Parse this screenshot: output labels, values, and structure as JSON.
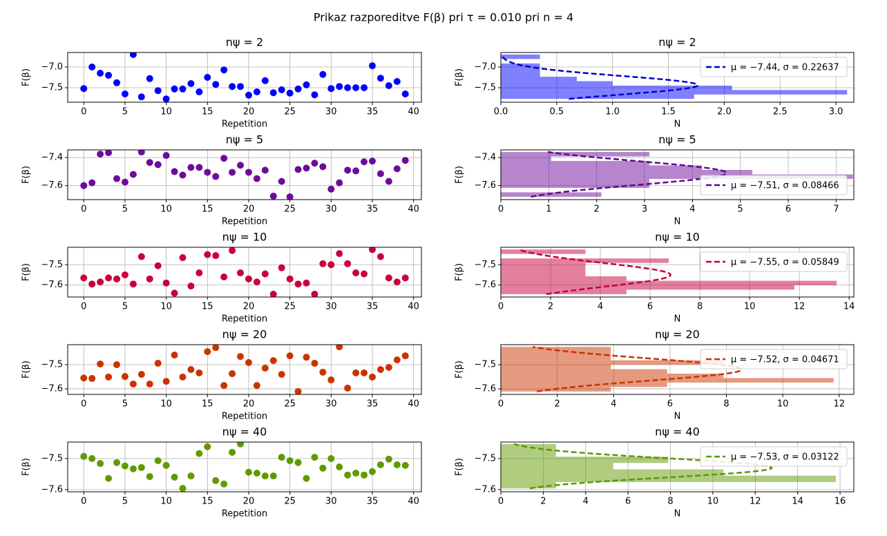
{
  "title": "Prikaz razporeditve F(β) pri τ = 0.010 pri n = 4",
  "chart_data": [
    {
      "type": "scatter",
      "title": "nψ = 2",
      "xlabel": "Repetition",
      "ylabel": "F(β)",
      "color": "#0000ff",
      "grid": true,
      "x": [
        0,
        1,
        2,
        3,
        4,
        5,
        6,
        7,
        8,
        9,
        10,
        11,
        12,
        13,
        14,
        15,
        16,
        17,
        18,
        19,
        20,
        21,
        22,
        23,
        24,
        25,
        26,
        27,
        28,
        29,
        30,
        31,
        32,
        33,
        34,
        35,
        36,
        37,
        38,
        39
      ],
      "values": [
        -7.52,
        -7.0,
        -7.15,
        -7.2,
        -7.38,
        -7.65,
        -6.7,
        -7.72,
        -7.28,
        -7.57,
        -7.77,
        -7.53,
        -7.53,
        -7.4,
        -7.6,
        -7.25,
        -7.42,
        -7.07,
        -7.47,
        -7.47,
        -7.68,
        -7.6,
        -7.33,
        -7.62,
        -7.55,
        -7.63,
        -7.53,
        -7.43,
        -7.67,
        -7.18,
        -7.52,
        -7.47,
        -7.5,
        -7.5,
        -7.5,
        -6.97,
        -7.27,
        -7.45,
        -7.35,
        -7.65
      ],
      "xlim": [
        -1.95,
        40.95
      ],
      "xticks": [
        0,
        5,
        10,
        15,
        20,
        25,
        30,
        35,
        40
      ],
      "ylim": [
        -7.85,
        -6.65
      ],
      "yticks": [
        {
          "value": -7.5,
          "label": "−7.5"
        },
        {
          "value": -7.0,
          "label": "−7.0"
        }
      ]
    },
    {
      "type": "histogram",
      "title": "nψ = 2",
      "xlabel": "N",
      "ylabel": "F(β)",
      "color": "#0000ff",
      "grid": true,
      "legend": "upper right",
      "bins": [
        -7.77,
        -7.663,
        -7.556,
        -7.449,
        -7.342,
        -7.235,
        -7.128,
        -7.021,
        -6.914,
        -6.807,
        -6.7
      ],
      "counts": [
        1.73,
        3.1,
        2.07,
        1.0,
        0.68,
        0.35,
        0.35,
        0.35,
        0,
        0.35
      ],
      "fit": {
        "name": "μ = −7.44, σ = 0.22637",
        "mu": -7.44,
        "sigma": 0.22637,
        "color": "#0000cc"
      },
      "xlim": [
        0,
        3.16
      ],
      "xticks": [
        {
          "value": 0,
          "label": "0.0"
        },
        0.5,
        {
          "value": 1,
          "label": "1.0"
        },
        1.5,
        {
          "value": 2,
          "label": "2.0"
        },
        2.5,
        {
          "value": 3,
          "label": "3.0"
        }
      ],
      "ylim": [
        -7.85,
        -6.65
      ],
      "yticks": [
        {
          "value": -7.5,
          "label": "−7.5"
        },
        {
          "value": -7.0,
          "label": "−7.0"
        }
      ]
    },
    {
      "type": "scatter",
      "title": "nψ = 5",
      "xlabel": "Repetition",
      "ylabel": "F(β)",
      "color": "#6d0c9c",
      "grid": true,
      "x": [
        0,
        1,
        2,
        3,
        4,
        5,
        6,
        7,
        8,
        9,
        10,
        11,
        12,
        13,
        14,
        15,
        16,
        17,
        18,
        19,
        20,
        21,
        22,
        23,
        24,
        25,
        26,
        27,
        28,
        29,
        30,
        31,
        32,
        33,
        34,
        35,
        36,
        37,
        38,
        39
      ],
      "values": [
        -7.6,
        -7.58,
        -7.375,
        -7.365,
        -7.55,
        -7.575,
        -7.52,
        -7.36,
        -7.435,
        -7.45,
        -7.385,
        -7.5,
        -7.525,
        -7.47,
        -7.47,
        -7.505,
        -7.535,
        -7.405,
        -7.505,
        -7.455,
        -7.505,
        -7.55,
        -7.49,
        -7.675,
        -7.57,
        -7.68,
        -7.485,
        -7.475,
        -7.44,
        -7.465,
        -7.625,
        -7.58,
        -7.49,
        -7.495,
        -7.43,
        -7.425,
        -7.515,
        -7.57,
        -7.48,
        -7.42
      ],
      "xlim": [
        -1.95,
        40.95
      ],
      "xticks": [
        0,
        5,
        10,
        15,
        20,
        25,
        30,
        35,
        40
      ],
      "ylim": [
        -7.7,
        -7.345
      ],
      "yticks": [
        {
          "value": -7.6,
          "label": "−7.6"
        },
        {
          "value": -7.4,
          "label": "−7.4"
        }
      ]
    },
    {
      "type": "histogram",
      "title": "nψ = 5",
      "xlabel": "N",
      "ylabel": "F(β)",
      "color": "#6d0c9c",
      "grid": true,
      "legend": "lower right",
      "bins": [
        -7.68,
        -7.648,
        -7.616,
        -7.584,
        -7.552,
        -7.52,
        -7.488,
        -7.456,
        -7.424,
        -7.392,
        -7.36
      ],
      "counts": [
        2.1,
        0,
        3.1,
        3.1,
        7.35,
        5.25,
        4.2,
        3.1,
        1.05,
        3.1
      ],
      "fit": {
        "name": "μ = −7.51, σ = 0.08466",
        "mu": -7.51,
        "sigma": 0.08466,
        "color": "#5a0a8a"
      },
      "xlim": [
        0,
        7.37
      ],
      "xticks": [
        0,
        1,
        2,
        3,
        4,
        5,
        6,
        7
      ],
      "ylim": [
        -7.7,
        -7.345
      ],
      "yticks": [
        {
          "value": -7.6,
          "label": "−7.6"
        },
        {
          "value": -7.4,
          "label": "−7.4"
        }
      ]
    },
    {
      "type": "scatter",
      "title": "nψ = 10",
      "xlabel": "Repetition",
      "ylabel": "F(β)",
      "color": "#c8003c",
      "grid": true,
      "x": [
        0,
        1,
        2,
        3,
        4,
        5,
        6,
        7,
        8,
        9,
        10,
        11,
        12,
        13,
        14,
        15,
        16,
        17,
        18,
        19,
        20,
        21,
        22,
        23,
        24,
        25,
        26,
        27,
        28,
        29,
        30,
        31,
        32,
        33,
        34,
        35,
        36,
        37,
        38,
        39
      ],
      "values": [
        -7.565,
        -7.595,
        -7.585,
        -7.565,
        -7.57,
        -7.55,
        -7.595,
        -7.46,
        -7.57,
        -7.505,
        -7.59,
        -7.64,
        -7.465,
        -7.605,
        -7.54,
        -7.45,
        -7.455,
        -7.56,
        -7.43,
        -7.54,
        -7.57,
        -7.585,
        -7.545,
        -7.645,
        -7.515,
        -7.57,
        -7.595,
        -7.59,
        -7.645,
        -7.495,
        -7.5,
        -7.445,
        -7.495,
        -7.54,
        -7.545,
        -7.425,
        -7.46,
        -7.565,
        -7.585,
        -7.565
      ],
      "xlim": [
        -1.95,
        40.95
      ],
      "xticks": [
        0,
        5,
        10,
        15,
        20,
        25,
        30,
        35,
        40
      ],
      "ylim": [
        -7.659,
        -7.414
      ],
      "yticks": [
        {
          "value": -7.6,
          "label": "−7.6"
        },
        {
          "value": -7.5,
          "label": "−7.5"
        }
      ]
    },
    {
      "type": "histogram",
      "title": "nψ = 10",
      "xlabel": "N",
      "ylabel": "F(β)",
      "color": "#c8003c",
      "grid": true,
      "legend": "upper right",
      "bins": [
        -7.645,
        -7.623,
        -7.601,
        -7.579,
        -7.557,
        -7.535,
        -7.513,
        -7.491,
        -7.469,
        -7.447,
        -7.425
      ],
      "counts": [
        5.05,
        11.8,
        13.5,
        5.05,
        3.4,
        3.4,
        3.4,
        6.75,
        0,
        3.4
      ],
      "fit": {
        "name": "μ = −7.55, σ = 0.05849",
        "mu": -7.55,
        "sigma": 0.05849,
        "color": "#c0003a"
      },
      "xlim": [
        0,
        14.19
      ],
      "xticks": [
        0,
        2,
        4,
        6,
        8,
        10,
        12,
        14
      ],
      "ylim": [
        -7.659,
        -7.414
      ],
      "yticks": [
        {
          "value": -7.6,
          "label": "−7.6"
        },
        {
          "value": -7.5,
          "label": "−7.5"
        }
      ]
    },
    {
      "type": "scatter",
      "title": "nψ = 20",
      "xlabel": "Repetition",
      "ylabel": "F(β)",
      "color": "#cc3300",
      "grid": true,
      "x": [
        0,
        1,
        2,
        3,
        4,
        5,
        6,
        7,
        8,
        9,
        10,
        11,
        12,
        13,
        14,
        15,
        16,
        17,
        18,
        19,
        20,
        21,
        22,
        23,
        24,
        25,
        26,
        27,
        28,
        29,
        30,
        31,
        32,
        33,
        34,
        35,
        36,
        37,
        38,
        39
      ],
      "values": [
        -7.555,
        -7.557,
        -7.497,
        -7.551,
        -7.5,
        -7.549,
        -7.58,
        -7.54,
        -7.58,
        -7.494,
        -7.569,
        -7.46,
        -7.551,
        -7.52,
        -7.534,
        -7.446,
        -7.429,
        -7.586,
        -7.537,
        -7.466,
        -7.491,
        -7.586,
        -7.514,
        -7.483,
        -7.54,
        -7.463,
        -7.611,
        -7.469,
        -7.494,
        -7.531,
        -7.563,
        -7.426,
        -7.597,
        -7.534,
        -7.534,
        -7.551,
        -7.52,
        -7.511,
        -7.48,
        -7.463
      ],
      "xlim": [
        -1.95,
        40.95
      ],
      "xticks": [
        0,
        5,
        10,
        15,
        20,
        25,
        30,
        35,
        40
      ],
      "ylim": [
        -7.623,
        -7.417
      ],
      "yticks": [
        {
          "value": -7.6,
          "label": "−7.6"
        },
        {
          "value": -7.5,
          "label": "−7.5"
        }
      ]
    },
    {
      "type": "histogram",
      "title": "nψ = 20",
      "xlabel": "N",
      "ylabel": "F(β)",
      "color": "#cc3300",
      "grid": true,
      "legend": "upper right",
      "bins": [
        -7.611,
        -7.5925,
        -7.574,
        -7.5555,
        -7.537,
        -7.5185,
        -7.5,
        -7.4815,
        -7.463,
        -7.4445,
        -7.426
      ],
      "counts": [
        3.9,
        5.9,
        11.8,
        7.9,
        5.9,
        3.9,
        7.9,
        3.9,
        3.9,
        3.9
      ],
      "fit": {
        "name": "μ = −7.52, σ = 0.04671",
        "mu": -7.52,
        "sigma": 0.04671,
        "color": "#c83200"
      },
      "xlim": [
        0,
        12.52
      ],
      "xticks": [
        0,
        2,
        4,
        6,
        8,
        10,
        12
      ],
      "ylim": [
        -7.623,
        -7.417
      ],
      "yticks": [
        {
          "value": -7.6,
          "label": "−7.6"
        },
        {
          "value": -7.5,
          "label": "−7.5"
        }
      ]
    },
    {
      "type": "scatter",
      "title": "nψ = 40",
      "xlabel": "Repetition",
      "ylabel": "F(β)",
      "color": "#5f9a00",
      "grid": true,
      "x": [
        0,
        1,
        2,
        3,
        4,
        5,
        6,
        7,
        8,
        9,
        10,
        11,
        12,
        13,
        14,
        15,
        16,
        17,
        18,
        19,
        20,
        21,
        22,
        23,
        24,
        25,
        26,
        27,
        28,
        29,
        30,
        31,
        32,
        33,
        34,
        35,
        36,
        37,
        38,
        39
      ],
      "values": [
        -7.493,
        -7.5,
        -7.516,
        -7.564,
        -7.513,
        -7.524,
        -7.533,
        -7.529,
        -7.558,
        -7.507,
        -7.522,
        -7.56,
        -7.596,
        -7.556,
        -7.484,
        -7.462,
        -7.571,
        -7.582,
        -7.48,
        -7.453,
        -7.544,
        -7.547,
        -7.556,
        -7.556,
        -7.496,
        -7.507,
        -7.513,
        -7.564,
        -7.496,
        -7.531,
        -7.5,
        -7.527,
        -7.553,
        -7.547,
        -7.553,
        -7.542,
        -7.52,
        -7.502,
        -7.52,
        -7.522
      ],
      "xlim": [
        -1.95,
        40.95
      ],
      "xticks": [
        0,
        5,
        10,
        15,
        20,
        25,
        30,
        35,
        40
      ],
      "ylim": [
        -7.607,
        -7.447
      ],
      "yticks": [
        {
          "value": -7.6,
          "label": "−7.6"
        },
        {
          "value": -7.5,
          "label": "−7.5"
        }
      ]
    },
    {
      "type": "histogram",
      "title": "nψ = 40",
      "xlabel": "N",
      "ylabel": "F(β)",
      "color": "#5f9a00",
      "grid": true,
      "legend": "upper right",
      "bins": [
        -7.596,
        -7.5756,
        -7.5552,
        -7.5348,
        -7.5144,
        -7.494,
        -7.4736,
        -7.4532
      ],
      "counts": [
        2.6,
        15.8,
        10.5,
        5.3,
        7.9,
        2.6,
        2.6
      ],
      "fit": {
        "name": "μ = −7.53, σ = 0.03122",
        "mu": -7.53,
        "sigma": 0.03122,
        "color": "#5a9600"
      },
      "xlim": [
        0,
        16.65
      ],
      "xticks": [
        0,
        2,
        4,
        6,
        8,
        10,
        12,
        14,
        16
      ],
      "ylim": [
        -7.607,
        -7.447
      ],
      "yticks": [
        {
          "value": -7.6,
          "label": "−7.6"
        },
        {
          "value": -7.5,
          "label": "−7.5"
        }
      ]
    }
  ]
}
